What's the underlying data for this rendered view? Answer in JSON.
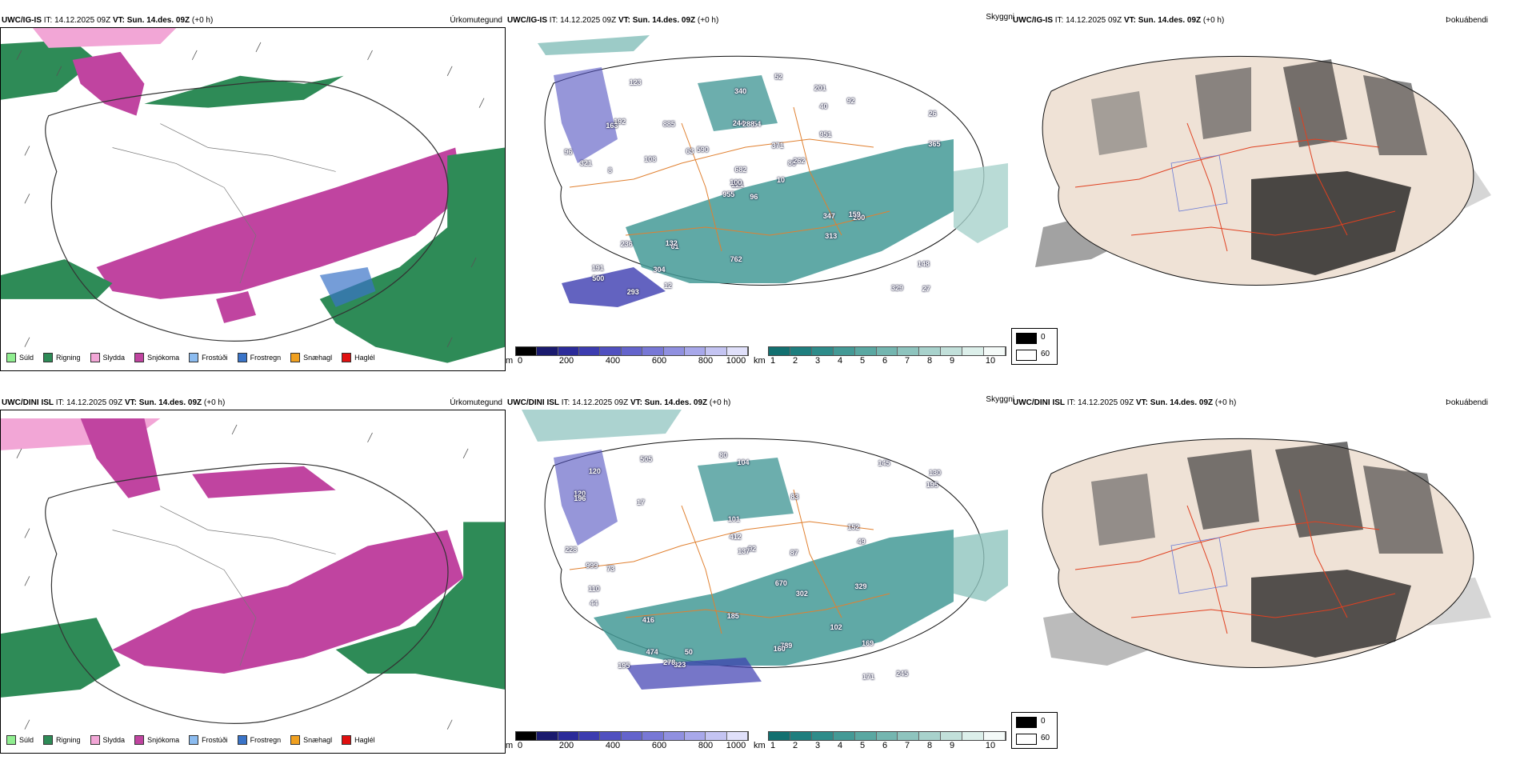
{
  "rows": [
    {
      "precip": {
        "header_model": "UWC/IG-IS",
        "header_it": "IT: 14.12.2025 09Z",
        "header_vt": "VT: Sun. 14.des. 09Z",
        "header_lead": "(+0 h)",
        "panel_name": "Úrkomutegund"
      },
      "cloud": {
        "header_model": "UWC/IG-IS",
        "header_it": "IT: 14.12.2025 09Z",
        "header_vt": "VT: Sun. 14.des. 09Z",
        "header_lead": "(+0 h)",
        "panel_name": "Skyggni"
      },
      "fog": {
        "header_model": "UWC/IG-IS",
        "header_it": "IT: 14.12.2025 09Z",
        "header_vt": "VT: Sun. 14.des. 09Z",
        "header_lead": "(+0 h)",
        "panel_name": "Þokuábendi"
      },
      "cloud_labels": [
        "96",
        "163",
        "221",
        "191",
        "86",
        "61",
        "201",
        "54",
        "40",
        "10",
        "123",
        "27",
        "8",
        "26",
        "955",
        "951",
        "293",
        "244",
        "371",
        "236",
        "590",
        "500",
        "304",
        "288",
        "262",
        "200",
        "192",
        "340",
        "321",
        "347",
        "365",
        "100",
        "762",
        "682",
        "885",
        "92",
        "132",
        "329",
        "148",
        "159",
        "52",
        "63",
        "108",
        "313",
        "12",
        "96"
      ]
    },
    {
      "precip": {
        "header_model": "UWC/DINI ISL",
        "header_it": "IT: 14.12.2025 09Z",
        "header_vt": "VT: Sun. 14.des. 09Z",
        "header_lead": "(+0 h)",
        "panel_name": "Úrkomutegund"
      },
      "cloud": {
        "header_model": "UWC/DINI ISL",
        "header_it": "IT: 14.12.2025 09Z",
        "header_vt": "VT: Sun. 14.des. 09Z",
        "header_lead": "(+0 h)",
        "panel_name": "Skyggni"
      },
      "fog": {
        "header_model": "UWC/DINI ISL",
        "header_it": "IT: 14.12.2025 09Z",
        "header_vt": "VT: Sun. 14.des. 09Z",
        "header_lead": "(+0 h)",
        "panel_name": "Þokuábendi"
      },
      "cloud_labels": [
        "228",
        "104",
        "152",
        "130",
        "120",
        "245",
        "73",
        "83",
        "101",
        "145",
        "92",
        "329",
        "80",
        "196",
        "17",
        "416",
        "789",
        "999",
        "670",
        "185",
        "102",
        "169",
        "195",
        "412",
        "474",
        "137",
        "302",
        "505",
        "323",
        "160",
        "110",
        "171",
        "87",
        "195",
        "278",
        "44",
        "49",
        "120",
        "50"
      ]
    }
  ],
  "precip_legend": [
    {
      "label": "Súld",
      "color": "#90ee90"
    },
    {
      "label": "Rigning",
      "color": "#2e8b57"
    },
    {
      "label": "Slydda",
      "color": "#f2a6d6"
    },
    {
      "label": "Snjókoma",
      "color": "#c044a0"
    },
    {
      "label": "Frostúði",
      "color": "#8cbcf0"
    },
    {
      "label": "Frostregn",
      "color": "#3a74c8"
    },
    {
      "label": "Snæhagl",
      "color": "#f0a020"
    },
    {
      "label": "Haglél",
      "color": "#e01010"
    }
  ],
  "cloud_base_bar": {
    "unit": "m",
    "ticks": [
      "0",
      "200",
      "400",
      "600",
      "800",
      "1000"
    ],
    "colors": [
      "#000000",
      "#1a1a6e",
      "#2b2b9a",
      "#3c3cb0",
      "#5050c0",
      "#6464cc",
      "#7878d6",
      "#9090e0",
      "#a8a8ea",
      "#c4c4f2",
      "#e0e0fa"
    ]
  },
  "visibility_bar": {
    "unit": "km",
    "ticks": [
      "1",
      "2",
      "3",
      "4",
      "5",
      "6",
      "7",
      "8",
      "9",
      "10"
    ],
    "colors": [
      "#127070",
      "#1e7e7e",
      "#2e8c8a",
      "#449a96",
      "#5aa8a2",
      "#74b6b0",
      "#8ec4be",
      "#a8d2cc",
      "#c2e0da",
      "#dcefea",
      "#f4faf8"
    ]
  },
  "fog_legend": [
    {
      "label": "0",
      "color": "#000000"
    },
    {
      "label": "60",
      "color": "#ffffff"
    }
  ]
}
